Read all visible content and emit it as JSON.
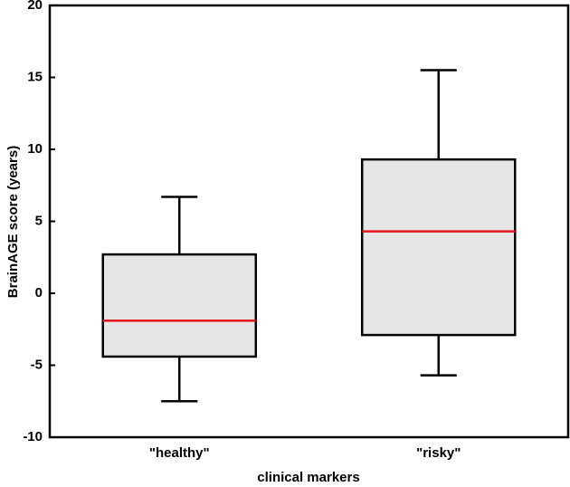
{
  "chart_data": {
    "type": "box",
    "xlabel": "clinical markers",
    "ylabel": "BrainAGE score (years)",
    "categories": [
      "\"healthy\"",
      "\"risky\""
    ],
    "boxes": [
      {
        "whisker_low": -7.5,
        "q1": -4.4,
        "median": -1.9,
        "q3": 2.7,
        "whisker_high": 6.7
      },
      {
        "whisker_low": -5.7,
        "q1": -2.9,
        "median": 4.3,
        "q3": 9.3,
        "whisker_high": 15.5
      }
    ],
    "box_color": "#e5e5e5",
    "median_color": "#e8141c",
    "ylim": [
      -10,
      20
    ],
    "yticks": [
      -10,
      -5,
      0,
      5,
      10,
      15,
      20
    ]
  }
}
